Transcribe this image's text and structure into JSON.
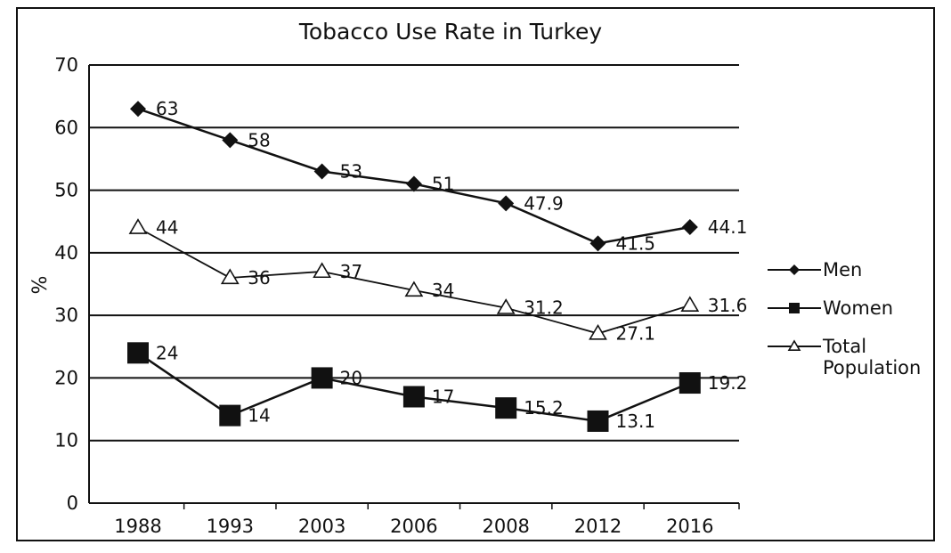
{
  "chart_data": {
    "type": "line",
    "title": "Tobacco Use Rate in Turkey",
    "xlabel": "",
    "ylabel": "%",
    "ylim": [
      0,
      70
    ],
    "yticks": [
      0,
      10,
      20,
      30,
      40,
      50,
      60,
      70
    ],
    "categories": [
      "1988",
      "1993",
      "2003",
      "2006",
      "2008",
      "2012",
      "2016"
    ],
    "grid": "horizontal",
    "legend_position": "right",
    "series": [
      {
        "name": "Men",
        "marker": "diamond",
        "values": [
          63,
          58,
          53,
          51,
          47.9,
          41.5,
          44.1
        ],
        "labels": [
          "63",
          "58",
          "53",
          "51",
          "47.9",
          "41.5",
          "44.1"
        ]
      },
      {
        "name": "Women",
        "marker": "square",
        "values": [
          24,
          14,
          20,
          17,
          15.2,
          13.1,
          19.2
        ],
        "labels": [
          "24",
          "14",
          "20",
          "17",
          "15.2",
          "13.1",
          "19.2"
        ]
      },
      {
        "name": "Total Population",
        "marker": "triangle",
        "values": [
          44,
          36,
          37,
          34,
          31.2,
          27.1,
          31.6
        ],
        "labels": [
          "44",
          "36",
          "37",
          "34",
          "31.2",
          "27.1",
          "31.6"
        ]
      }
    ]
  }
}
